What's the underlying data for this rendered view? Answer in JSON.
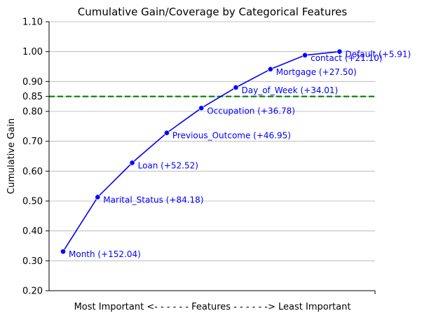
{
  "chart_data": {
    "type": "line",
    "title": "Cumulative Gain/Coverage by Categorical Features",
    "xlabel": "Most Important <- - - - - - Features - - - - - -> Least Important",
    "ylabel": "Cumulative Gain",
    "ylim": [
      0.2,
      1.1
    ],
    "yticks": [
      0.2,
      0.3,
      0.4,
      0.5,
      0.6,
      0.7,
      0.8,
      0.85,
      0.9,
      1.0,
      1.1
    ],
    "ytick_labels": [
      "0.20",
      "0.30",
      "0.40",
      "0.50",
      "0.60",
      "0.70",
      "0.80",
      "0.85",
      "0.90",
      "1.00",
      "1.10"
    ],
    "grid": "horizontal",
    "threshold": {
      "y": 0.85,
      "color": "#008000",
      "style": "dashed"
    },
    "line_color": "#0000ff",
    "points": [
      {
        "y": 0.331,
        "label": "Month (+152.04)"
      },
      {
        "y": 0.513,
        "label": "Marital_Status (+84.18)"
      },
      {
        "y": 0.628,
        "label": "Loan (+52.52)"
      },
      {
        "y": 0.728,
        "label": "Previous_Outcome (+46.95)"
      },
      {
        "y": 0.811,
        "label": "Occupation (+36.78)"
      },
      {
        "y": 0.88,
        "label": "Day_of_Week (+34.01)"
      },
      {
        "y": 0.941,
        "label": "Mortgage (+27.50)"
      },
      {
        "y": 0.988,
        "label": "contact (+21.10)"
      },
      {
        "y": 1.0,
        "label": "Default (+5.91)"
      }
    ]
  }
}
